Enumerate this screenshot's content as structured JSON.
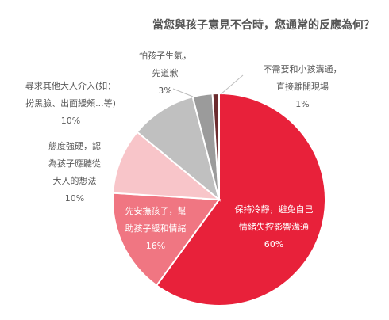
{
  "chart_data": {
    "type": "pie",
    "title": "當您與孩子意見不合時，您通常的反應為何？",
    "slices": [
      {
        "lines": [
          "保持冷靜，避免自己",
          "情緒失控影響溝通"
        ],
        "value": 60,
        "value_label": "60%",
        "color": "#e8213a",
        "text_color": "#ffffff"
      },
      {
        "lines": [
          "先安撫孩子，幫",
          "助孩子緩和情緒"
        ],
        "value": 16,
        "value_label": "16%",
        "color": "#f07682",
        "text_color": "#ffffff"
      },
      {
        "lines": [
          "態度強硬，認",
          "為孩子應聽從",
          "大人的想法"
        ],
        "value": 10,
        "value_label": "10%",
        "color": "#f8c5c9",
        "text_color": "#595959"
      },
      {
        "lines": [
          "尋求其他大人介入(如：",
          "扮黑臉、出面緩頰...等)"
        ],
        "value": 10,
        "value_label": "10%",
        "color": "#c0c0c0",
        "text_color": "#595959"
      },
      {
        "lines": [
          "怕孩子生氣，",
          "先道歉"
        ],
        "value": 3,
        "value_label": "3%",
        "color": "#9b9b9b",
        "text_color": "#595959"
      },
      {
        "lines": [
          "不需要和小孩溝通，",
          "直接離開現場"
        ],
        "value": 1,
        "value_label": "1%",
        "color": "#6b2b2e",
        "text_color": "#595959"
      }
    ]
  }
}
